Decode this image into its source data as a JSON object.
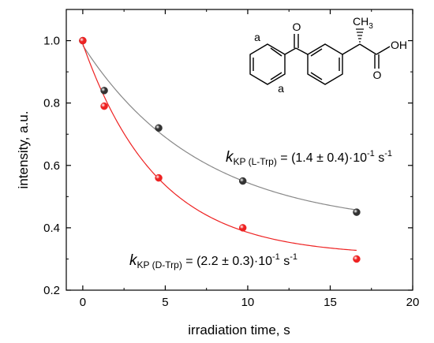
{
  "chart_data": {
    "type": "scatter",
    "xlabel": "irradiation time, s",
    "ylabel": "intensity, a.u.",
    "xlim": [
      -1,
      20
    ],
    "ylim": [
      0.2,
      1.1
    ],
    "xticks": [
      "0",
      "5",
      "10",
      "15",
      "20"
    ],
    "yticks": [
      "0.2",
      "0.4",
      "0.6",
      "0.8",
      "1.0"
    ],
    "xtick_values": [
      0,
      5,
      10,
      15,
      20
    ],
    "ytick_values": [
      0.2,
      0.4,
      0.6,
      0.8,
      1.0
    ],
    "grid": false,
    "series": [
      {
        "color": "#333333",
        "fit_color": "#888888",
        "x": [
          0,
          1.3,
          4.6,
          9.7,
          16.6
        ],
        "y": [
          1.0,
          0.84,
          0.72,
          0.55,
          0.45
        ],
        "fit": {
          "y_inf": 0.4,
          "amplitude": 0.585,
          "rate": 0.14
        }
      },
      {
        "color": "#ee2222",
        "fit_color": "#ee2222",
        "x": [
          0,
          1.3,
          4.6,
          9.7,
          16.6
        ],
        "y": [
          1.0,
          0.79,
          0.56,
          0.4,
          0.3
        ],
        "fit": {
          "y_inf": 0.31,
          "amplitude": 0.68,
          "rate": 0.22
        }
      }
    ],
    "annotations": [
      {
        "k": "k",
        "sub": "KP (L-Trp)",
        "value": " = (1.4 ± 0.4)·10",
        "exp": "-1",
        "unit": " s",
        "unit_exp": "-1"
      },
      {
        "k": "k",
        "sub": "KP (D-Trp)",
        "value": " = (2.2 ± 0.3)·10",
        "exp": "-1",
        "unit": " s",
        "unit_exp": "-1"
      }
    ]
  },
  "molecule": {
    "label_a_top": "a",
    "label_a_bottom": "a",
    "label_O_ketone": "O",
    "label_CH": "CH",
    "label_3": "3",
    "label_OH": "OH",
    "label_O_acid": "O"
  }
}
